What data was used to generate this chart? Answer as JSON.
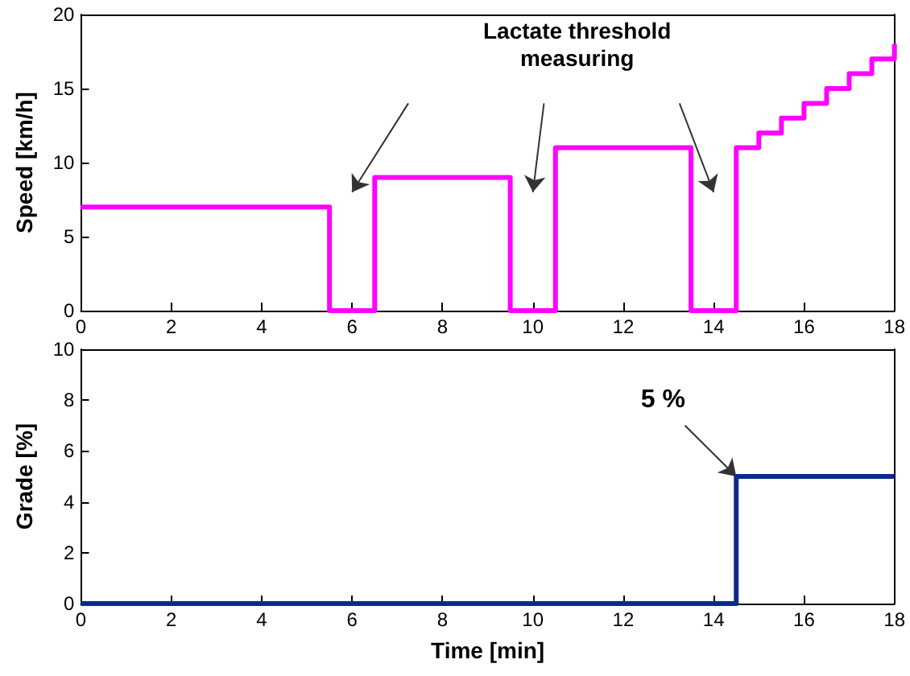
{
  "chart_data": [
    {
      "type": "step",
      "ylabel": "Speed [km/h]",
      "xlim": [
        0,
        18
      ],
      "xticks": [
        0,
        2,
        4,
        6,
        8,
        10,
        12,
        14,
        16,
        18
      ],
      "ylim": [
        0,
        20
      ],
      "yticks": [
        0,
        5,
        10,
        15,
        20
      ],
      "marker": "none",
      "series": [
        {
          "color": "#ff00ff",
          "x": [
            0,
            5.5,
            6.5,
            9.5,
            10.5,
            13.5,
            14.5,
            15,
            15.5,
            16,
            16.5,
            17,
            17.5,
            18
          ],
          "values": [
            7,
            0,
            9,
            0,
            11,
            0,
            11,
            12,
            13,
            14,
            15,
            16,
            17,
            18
          ]
        }
      ],
      "annotations": [
        "Lactate threshold\nmeasuring"
      ]
    },
    {
      "type": "step",
      "ylabel": "Grade [%]",
      "xlabel": "Time [min]",
      "xlim": [
        0,
        18
      ],
      "xticks": [
        0,
        2,
        4,
        6,
        8,
        10,
        12,
        14,
        16,
        18
      ],
      "ylim": [
        0,
        10
      ],
      "yticks": [
        0,
        2,
        4,
        6,
        8,
        10
      ],
      "marker": "none",
      "series": [
        {
          "color": "#0b2a8c",
          "x": [
            0,
            7,
            14.5,
            16,
            18
          ],
          "values": [
            0,
            0,
            5,
            5,
            5
          ]
        }
      ],
      "annotations": [
        {
          "text": "5 %",
          "x": 14.5,
          "y": 5
        }
      ]
    }
  ]
}
